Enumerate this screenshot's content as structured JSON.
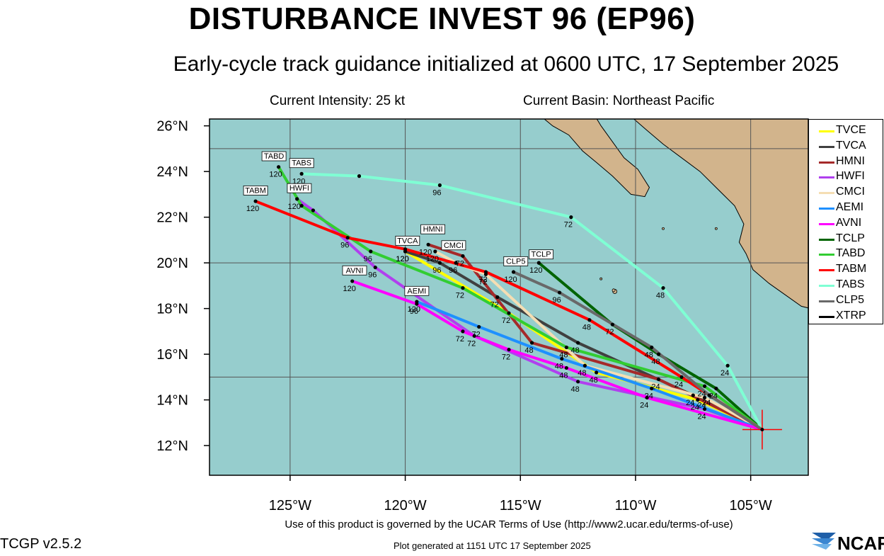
{
  "title": "DISTURBANCE INVEST 96 (EP96)",
  "subtitle": "Early-cycle track guidance initialized at 0600 UTC, 17 September 2025",
  "info": {
    "intensity": "Current Intensity: 25 kt",
    "basin": "Current Basin: Northeast Pacific"
  },
  "footer": {
    "terms": "Use of this product is governed by the UCAR Terms of Use (http://www2.ucar.edu/terms-of-use)",
    "version": "TCGP v2.5.2",
    "generated": "Plot generated at 1151 UTC   17 September 2025",
    "logo_text": "NCAR"
  },
  "colors": {
    "ocean": "#96cdcd",
    "land": "#d2b48c",
    "grid": "#555555",
    "current_position_marker": "#ff0000"
  },
  "chart_data": {
    "type": "line",
    "xlim": [
      -128.5,
      -102.5
    ],
    "ylim": [
      10.7,
      26.3
    ],
    "xticks": [
      -125,
      -120,
      -115,
      -110,
      -105
    ],
    "xtick_labels": [
      "125°W",
      "120°W",
      "115°W",
      "110°W",
      "105°W"
    ],
    "yticks": [
      12,
      14,
      16,
      18,
      20,
      22,
      24,
      26
    ],
    "ytick_labels": [
      "12°N",
      "14°N",
      "16°N",
      "18°N",
      "20°N",
      "22°N",
      "24°N",
      "26°N"
    ],
    "grid": true,
    "legend_placement": "right",
    "initial_position": {
      "lon": -104.5,
      "lat": 12.7
    },
    "series": [
      {
        "name": "TVCE",
        "color": "#ffff00",
        "lon": [
          -104.5,
          -107.3,
          -111.7,
          -115.5,
          -120.0
        ],
        "lat": [
          12.7,
          14.0,
          15.2,
          17.8,
          20.5
        ],
        "tau_labels": [
          "",
          "24",
          "48",
          "72",
          "120"
        ]
      },
      {
        "name": "TVCA",
        "color": "#404040",
        "lon": [
          -104.5,
          -107.5,
          -112.5,
          -116.0,
          -118.5,
          -120.0
        ],
        "lat": [
          12.7,
          14.2,
          16.5,
          18.5,
          20.0,
          20.5
        ],
        "tau_labels": [
          "",
          "24",
          "48",
          "72",
          "96",
          "120"
        ]
      },
      {
        "name": "HMNI",
        "color": "#a52a2a",
        "lon": [
          -104.5,
          -109.0,
          -114.5,
          -117.5,
          -119.0
        ],
        "lat": [
          12.7,
          14.9,
          16.5,
          20.3,
          20.8
        ],
        "tau_labels": [
          "",
          "24",
          "48",
          "72",
          "120"
        ]
      },
      {
        "name": "HWFI",
        "color": "#b040ee",
        "lon": [
          -104.5,
          -107.0,
          -112.5,
          -117.0,
          -121.3,
          -124.0,
          -124.7
        ],
        "lat": [
          12.7,
          13.6,
          14.8,
          16.8,
          19.8,
          22.3,
          22.8
        ],
        "tau_labels": [
          "",
          "24",
          "48",
          "72",
          "96",
          "",
          "120"
        ]
      },
      {
        "name": "CMCI",
        "color": "#f5deb3",
        "lon": [
          -104.5,
          -107.0,
          -112.2,
          -116.5,
          -117.8,
          -118.7
        ],
        "lat": [
          12.7,
          14.1,
          15.5,
          19.5,
          20.0,
          20.5
        ],
        "tau_labels": [
          "",
          "24",
          "48",
          "72",
          "96",
          "120"
        ]
      },
      {
        "name": "AEMI",
        "color": "#1e90ff",
        "lon": [
          -104.5,
          -109.3,
          -113.2,
          -116.8,
          -119.5
        ],
        "lat": [
          12.7,
          14.5,
          15.8,
          17.2,
          18.3
        ],
        "tau_labels": [
          "",
          "24",
          "48",
          "72",
          "120"
        ]
      },
      {
        "name": "AVNI",
        "color": "#ff00ff",
        "lon": [
          -104.5,
          -109.5,
          -113.0,
          -115.5,
          -117.5,
          -119.5,
          -122.3
        ],
        "lat": [
          12.7,
          14.1,
          15.4,
          16.2,
          17.0,
          18.2,
          19.2
        ],
        "tau_labels": [
          "",
          "24",
          "48",
          "72",
          "72",
          "96",
          "120"
        ]
      },
      {
        "name": "TCLP",
        "color": "#006400",
        "lon": [
          -104.5,
          -106.5,
          -109.0,
          -111.0,
          -114.2
        ],
        "lat": [
          12.7,
          14.5,
          16.0,
          17.3,
          20.0
        ],
        "tau_labels": [
          "",
          "24",
          "48",
          "72",
          "120"
        ]
      },
      {
        "name": "TABD",
        "color": "#32cd32",
        "lon": [
          -104.5,
          -107.0,
          -113.0,
          -117.5,
          -121.5,
          -124.5,
          -125.5
        ],
        "lat": [
          12.7,
          14.6,
          16.3,
          18.9,
          20.5,
          22.5,
          24.2
        ],
        "tau_labels": [
          "",
          "24",
          "48",
          "72",
          "96",
          "",
          "120"
        ]
      },
      {
        "name": "TABM",
        "color": "#ff0000",
        "lon": [
          -104.5,
          -108.0,
          -112.0,
          -116.5,
          -120.0,
          -122.5,
          -126.5
        ],
        "lat": [
          12.7,
          15.0,
          17.5,
          19.6,
          20.6,
          21.1,
          22.7
        ],
        "tau_labels": [
          "",
          "24",
          "48",
          "72",
          "",
          "96",
          "120"
        ]
      },
      {
        "name": "TABS",
        "color": "#7fffd4",
        "lon": [
          -104.5,
          -106.0,
          -108.8,
          -112.8,
          -118.5,
          -122.0,
          -124.5
        ],
        "lat": [
          12.7,
          15.5,
          18.9,
          22.0,
          23.4,
          23.8,
          23.9
        ],
        "tau_labels": [
          "",
          "24",
          "48",
          "72",
          "96",
          "",
          "120"
        ]
      },
      {
        "name": "CLP5",
        "color": "#696969",
        "lon": [
          -104.5,
          -106.8,
          -109.3,
          -113.3,
          -115.3
        ],
        "lat": [
          12.7,
          14.2,
          16.3,
          18.7,
          19.6
        ],
        "tau_labels": [
          "",
          "24",
          "48",
          "96",
          "120"
        ]
      },
      {
        "name": "XTRP",
        "color": "#000000",
        "lon": [
          -104.5
        ],
        "lat": [
          12.7
        ],
        "tau_labels": [
          ""
        ]
      }
    ],
    "end_labels": [
      {
        "text": "TABD",
        "lon": -125.7,
        "lat": 24.5
      },
      {
        "text": "TABS",
        "lon": -124.5,
        "lat": 24.2
      },
      {
        "text": "TABM",
        "lon": -126.5,
        "lat": 23.0
      },
      {
        "text": "HWFI",
        "lon": -124.6,
        "lat": 23.1
      },
      {
        "text": "HMNI",
        "lon": -118.8,
        "lat": 21.3
      },
      {
        "text": "TVCA",
        "lon": -119.9,
        "lat": 20.8
      },
      {
        "text": "CMCI",
        "lon": -117.9,
        "lat": 20.6
      },
      {
        "text": "CLP5",
        "lon": -115.2,
        "lat": 19.9
      },
      {
        "text": "TCLP",
        "lon": -114.1,
        "lat": 20.2
      },
      {
        "text": "AVNI",
        "lon": -122.2,
        "lat": 19.5
      },
      {
        "text": "AEMI",
        "lon": -119.5,
        "lat": 18.6
      }
    ]
  }
}
